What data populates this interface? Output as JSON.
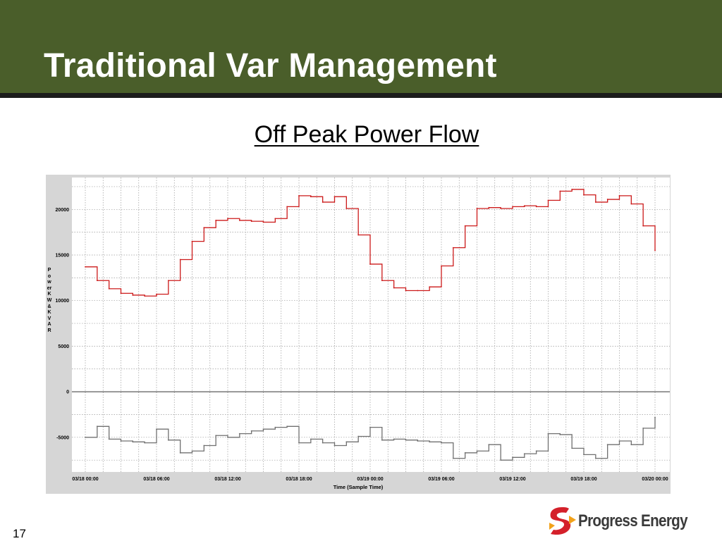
{
  "slide": {
    "title": "Traditional Var Management",
    "page_number": "17",
    "logo_text": "Progress Energy",
    "banner_color": "#4a5e2a",
    "logo_icon": "progress-energy-logo-icon"
  },
  "chart_data": {
    "type": "line",
    "title": "Off Peak Power Flow",
    "ylabel": "Power KW & KVAR",
    "xlabel": "Time  (Sample Time)",
    "ylim": [
      -8800,
      23500
    ],
    "yticks": [
      20000,
      15000,
      10000,
      5000,
      0,
      -5000
    ],
    "xticks": [
      "03/18 00:00",
      "03/18 06:00",
      "03/18 12:00",
      "03/18 18:00",
      "03/19 00:00",
      "03/19 06:00",
      "03/19 12:00",
      "03/19 18:00",
      "03/20 00:00"
    ],
    "x_unit": "hours after 03/18 00:00",
    "grid": true,
    "series": [
      {
        "name": "KW",
        "color": "#cc1a1a",
        "x": [
          0,
          1,
          2,
          3,
          4,
          5,
          6,
          7,
          8,
          9,
          10,
          11,
          12,
          13,
          14,
          15,
          16,
          17,
          18,
          19,
          20,
          21,
          22,
          23,
          24,
          25,
          26,
          27,
          28,
          29,
          30,
          31,
          32,
          33,
          34,
          35,
          36,
          37,
          38,
          39,
          40,
          41,
          42,
          43,
          44,
          45,
          46,
          47,
          48
        ],
        "values": [
          13700,
          12200,
          11300,
          10800,
          10600,
          10500,
          10700,
          12200,
          14500,
          16500,
          18000,
          18800,
          19000,
          18800,
          18700,
          18600,
          19000,
          20300,
          21500,
          21400,
          20800,
          21400,
          20100,
          17200,
          14000,
          12200,
          11400,
          11100,
          11100,
          11500,
          13800,
          15800,
          18200,
          20100,
          20200,
          20100,
          20300,
          20400,
          20300,
          21000,
          22000,
          22200,
          21600,
          20800,
          21100,
          21500,
          20600,
          18200,
          15500
        ]
      },
      {
        "name": "KVAR",
        "color": "#707070",
        "x": [
          0,
          1,
          2,
          3,
          4,
          5,
          6,
          7,
          8,
          9,
          10,
          11,
          12,
          13,
          14,
          15,
          16,
          17,
          18,
          19,
          20,
          21,
          22,
          23,
          24,
          25,
          26,
          27,
          28,
          29,
          30,
          31,
          32,
          33,
          34,
          35,
          36,
          37,
          38,
          39,
          40,
          41,
          42,
          43,
          44,
          45,
          46,
          47,
          48
        ],
        "values": [
          -5000,
          -3800,
          -5200,
          -5400,
          -5500,
          -5600,
          -4100,
          -5300,
          -6700,
          -6500,
          -5900,
          -4800,
          -5000,
          -4600,
          -4300,
          -4100,
          -3900,
          -3800,
          -5600,
          -5200,
          -5600,
          -5900,
          -5500,
          -4900,
          -3900,
          -5300,
          -5200,
          -5300,
          -5400,
          -5500,
          -5600,
          -7300,
          -6700,
          -6500,
          -5800,
          -7500,
          -7200,
          -6800,
          -6500,
          -4600,
          -4700,
          -6200,
          -6900,
          -7300,
          -5800,
          -5400,
          -5800,
          -4000,
          -2800
        ]
      }
    ]
  }
}
